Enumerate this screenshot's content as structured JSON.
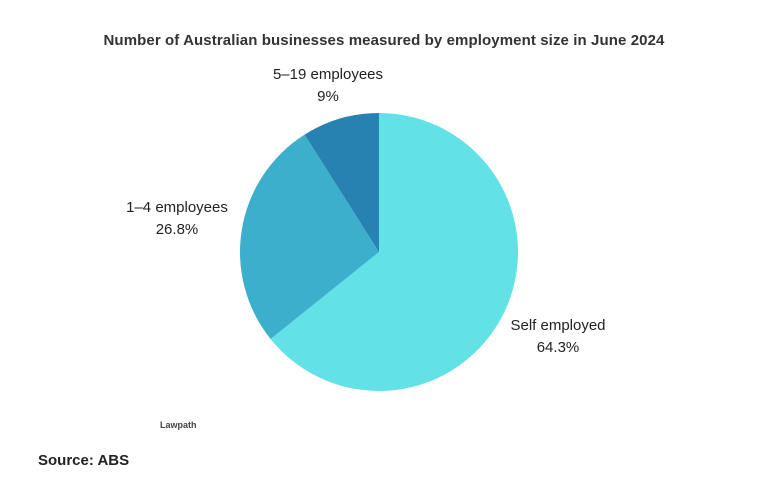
{
  "chart_data": {
    "type": "pie",
    "title": "Number of Australian businesses measured by employment size in June 2024",
    "slices": [
      {
        "label": "Self employed",
        "value": 64.3,
        "value_text": "64.3%",
        "color": "#62e1e6"
      },
      {
        "label": "1–4 employees",
        "value": 26.8,
        "value_text": "26.8%",
        "color": "#3cafcd"
      },
      {
        "label": "5–19 employees",
        "value": 9,
        "value_text": "9%",
        "color": "#2782b2"
      }
    ],
    "start": "12 o'clock",
    "direction": "clockwise"
  },
  "watermark": "Lawpath",
  "source": "Source: ABS"
}
